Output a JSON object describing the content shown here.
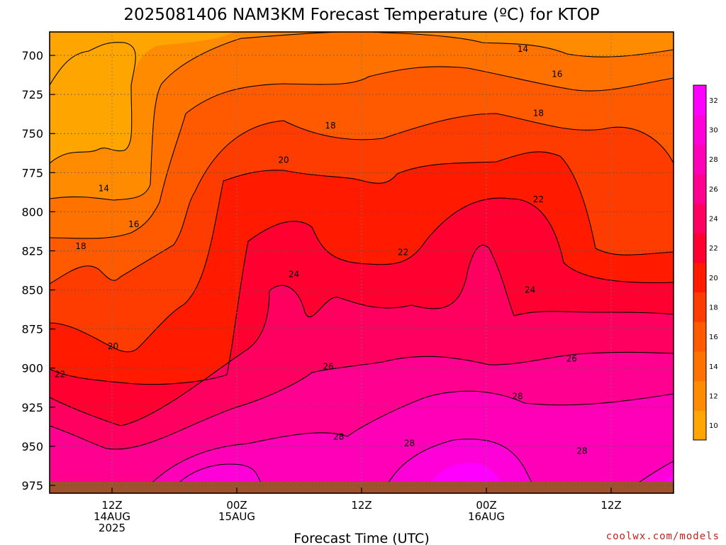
{
  "title": "2025081406 NAM3KM Forecast Temperature (ºC) for KTOP",
  "watermark": "coolwx.com/models",
  "chart_data": {
    "type": "contour",
    "title": "2025081406 NAM3KM Forecast Temperature (ºC) for KTOP",
    "xlabel": "Forecast Time (UTC)",
    "ylabel": "",
    "ylim": [
      980,
      685
    ],
    "y_ticks": [
      700,
      725,
      750,
      775,
      800,
      825,
      850,
      875,
      900,
      925,
      950,
      975
    ],
    "x_ticks": [
      {
        "lines": [
          "12Z",
          "14AUG",
          "2025"
        ]
      },
      {
        "lines": [
          "00Z",
          "15AUG"
        ]
      },
      {
        "lines": [
          "12Z"
        ]
      },
      {
        "lines": [
          "00Z",
          "16AUG"
        ]
      },
      {
        "lines": [
          "12Z"
        ]
      }
    ],
    "x_range_hours_since_init": [
      0,
      60
    ],
    "x_tick_hours_since_init": [
      6,
      18,
      30,
      42,
      54
    ],
    "grid": true,
    "colorbar": {
      "levels": [
        10,
        12,
        14,
        16,
        18,
        20,
        22,
        24,
        26,
        28,
        30,
        32
      ],
      "colors": [
        "#ffa500",
        "#ff8c00",
        "#ff7200",
        "#ff5a00",
        "#ff3c00",
        "#ff1a00",
        "#ff0030",
        "#ff0060",
        "#ff0090",
        "#ff00b8",
        "#ff00d8",
        "#ff00ff"
      ]
    },
    "contour_labels": [
      {
        "value": "14",
        "hour": 45.5,
        "p": 696
      },
      {
        "value": "16",
        "hour": 48.8,
        "p": 712
      },
      {
        "value": "18",
        "hour": 47.0,
        "p": 737
      },
      {
        "value": "18",
        "hour": 27.0,
        "p": 745
      },
      {
        "value": "20",
        "hour": 22.5,
        "p": 767
      },
      {
        "value": "22",
        "hour": 47.0,
        "p": 792
      },
      {
        "value": "22",
        "hour": 34.0,
        "p": 826
      },
      {
        "value": "24",
        "hour": 23.5,
        "p": 840
      },
      {
        "value": "24",
        "hour": 46.2,
        "p": 850
      },
      {
        "value": "26",
        "hour": 50.2,
        "p": 894
      },
      {
        "value": "26",
        "hour": 26.8,
        "p": 899
      },
      {
        "value": "28",
        "hour": 45.0,
        "p": 918
      },
      {
        "value": "28",
        "hour": 27.8,
        "p": 944
      },
      {
        "value": "28",
        "hour": 34.6,
        "p": 948
      },
      {
        "value": "28",
        "hour": 51.2,
        "p": 953
      },
      {
        "value": "14",
        "hour": 5.2,
        "p": 785
      },
      {
        "value": "16",
        "hour": 8.1,
        "p": 808
      },
      {
        "value": "18",
        "hour": 3.0,
        "p": 822
      },
      {
        "value": "20",
        "hour": 6.1,
        "p": 886
      },
      {
        "value": "22",
        "hour": 1.0,
        "p": 904
      }
    ]
  }
}
